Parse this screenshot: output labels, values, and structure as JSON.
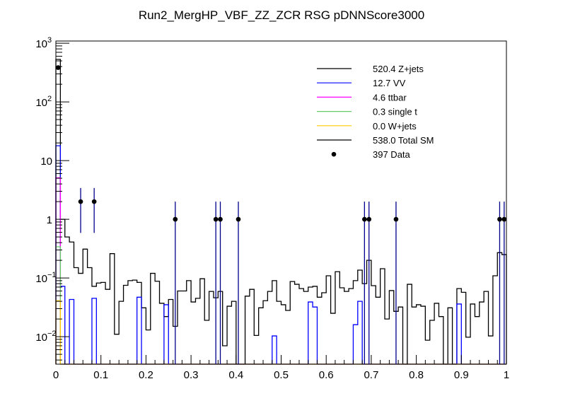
{
  "chart_data": {
    "type": "bar",
    "title": "Run2_MergHP_VBF_ZZ_ZCR RSG  pDNNScore3000",
    "xlabel": "",
    "ylabel": "",
    "xlim": [
      0,
      1
    ],
    "ylim": [
      0.0034,
      1090
    ],
    "yscale": "log",
    "nbins": 100,
    "x_ticks": [
      "0",
      "0.1",
      "0.2",
      "0.3",
      "0.4",
      "0.5",
      "0.6",
      "0.7",
      "0.8",
      "0.9",
      "1"
    ],
    "y_ticks": [
      {
        "value": 1000,
        "base": "10",
        "exp": "3"
      },
      {
        "value": 100,
        "base": "10",
        "exp": "2"
      },
      {
        "value": 10,
        "base": "10",
        "exp": ""
      },
      {
        "value": 1,
        "base": "1",
        "exp": ""
      },
      {
        "value": 0.1,
        "base": "10",
        "exp": "−1"
      },
      {
        "value": 0.01,
        "base": "10",
        "exp": "−2"
      }
    ],
    "legend_position": "top-right",
    "legend": [
      {
        "label": "520.4 Z+jets",
        "color": "#000000",
        "kind": "line"
      },
      {
        "label": "12.7 VV",
        "color": "#0000ff",
        "kind": "line"
      },
      {
        "label": "4.6 ttbar",
        "color": "#ff00ff",
        "kind": "line"
      },
      {
        "label": "0.3 single t",
        "color": "#66cc66",
        "kind": "line"
      },
      {
        "label": "0.0 W+jets",
        "color": "#ffcc00",
        "kind": "line"
      },
      {
        "label": "538.0 Total SM",
        "color": "#000000",
        "kind": "line"
      },
      {
        "label": "397 Data",
        "color": "#000000",
        "kind": "marker"
      }
    ],
    "series": [
      {
        "name": "Total SM",
        "color": "#000000",
        "values": [
          530,
          1.0,
          0.5,
          0.41,
          0.15,
          0.12,
          0.31,
          0.15,
          0.072,
          0.082,
          0.084,
          0.064,
          0.26,
          0.011,
          0.04,
          0.075,
          0.09,
          0.092,
          0.084,
          0.031,
          0.013,
          0.12,
          0.088,
          0.037,
          0.022,
          0.043,
          0.015,
          0.06,
          0.06,
          0.09,
          0.039,
          0.045,
          0.097,
          0.019,
          0.059,
          0.046,
          0.059,
          0.007,
          0.033,
          0.04,
          0,
          0,
          0.049,
          0.064,
          0.0105,
          0.031,
          0.041,
          0.059,
          0.09,
          0.04,
          0.035,
          0.028,
          0.087,
          0.078,
          0.066,
          0.059,
          0.07,
          0.072,
          0.047,
          0.056,
          0.109,
          0.025,
          0.128,
          0.068,
          0.059,
          0.066,
          0.09,
          0.136,
          0.08,
          0.2,
          0.074,
          0.047,
          0.144,
          0.02,
          0.061,
          0.027,
          0.032,
          0,
          0.078,
          0.032,
          0.035,
          0.033,
          0.0087,
          0.019,
          0.037,
          0.022,
          0,
          0.031,
          0,
          0.066,
          0.057,
          0.0098,
          0.036,
          0.022,
          0.039,
          0.059,
          0.0103,
          0.109,
          0.27,
          0.25
        ]
      },
      {
        "name": "VV",
        "color": "#0000ff",
        "bins": [
          0,
          1,
          3,
          8,
          18,
          24,
          48,
          56,
          57,
          66,
          67,
          89
        ],
        "values": [
          17.9,
          0.072,
          0.043,
          0.045,
          0.047,
          0.035,
          0.0103,
          0.039,
          0.032,
          0.016,
          0.04,
          0.036
        ]
      },
      {
        "name": "ttbar",
        "color": "#ff00ff",
        "bins": [
          0
        ],
        "values": [
          5.1
        ]
      },
      {
        "name": "single t",
        "color": "#66cc66",
        "bins": [
          0
        ],
        "values": [
          0.34
        ]
      },
      {
        "name": "W+jets",
        "color": "#ffcc00",
        "bins": [
          0
        ],
        "values": [
          0.041
        ]
      }
    ],
    "data_points": {
      "name": "Data",
      "bins": [
        0,
        5,
        8,
        26,
        35,
        36,
        40,
        68,
        69,
        75,
        98,
        99
      ],
      "values": [
        384,
        2,
        2,
        1,
        1,
        1,
        1,
        1,
        1,
        1,
        1,
        1
      ]
    }
  }
}
